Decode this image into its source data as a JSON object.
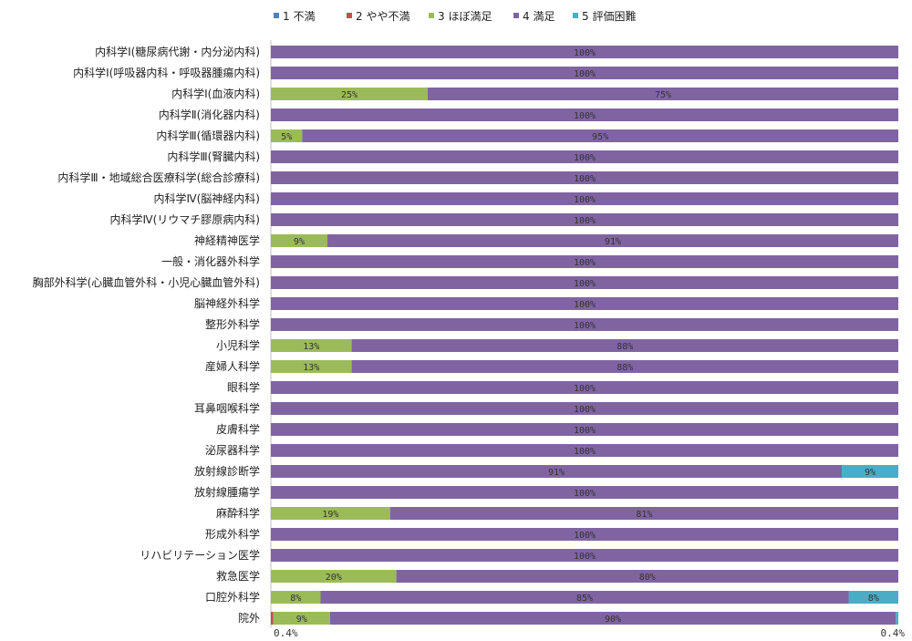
{
  "chart_data": {
    "type": "bar",
    "orientation": "horizontal",
    "stacked": true,
    "percent": true,
    "xlim": [
      0,
      100
    ],
    "legend_position": "top",
    "grid": false,
    "series": [
      {
        "name": "1 不満",
        "color": "#4F81BD"
      },
      {
        "name": "2 やや不満",
        "color": "#C0504D"
      },
      {
        "name": "3 ほぼ満足",
        "color": "#9BBB59"
      },
      {
        "name": "4 満足",
        "color": "#8064A2"
      },
      {
        "name": "5 評価困難",
        "color": "#4BACC6"
      }
    ],
    "categories": [
      "内科学Ⅰ(糖尿病代謝・内分泌内科)",
      "内科学Ⅰ(呼吸器内科・呼吸器腫瘍内科)",
      "内科学Ⅰ(血液内科)",
      "内科学Ⅱ(消化器内科)",
      "内科学Ⅲ(循環器内科)",
      "内科学Ⅲ(腎臓内科)",
      "内科学Ⅲ・地域総合医療科学(総合診療科)",
      "内科学Ⅳ(脳神経内科)",
      "内科学Ⅳ(リウマチ膠原病内科)",
      "神経精神医学",
      "一般・消化器外科学",
      "胸部外科学(心臓血管外科・小児心臓血管外科)",
      "脳神経外科学",
      "整形外科学",
      "小児科学",
      "産婦人科学",
      "眼科学",
      "耳鼻咽喉科学",
      "皮膚科学",
      "泌尿器科学",
      "放射線診断学",
      "放射線腫瘍学",
      "麻酔科学",
      "形成外科学",
      "リハビリテーション医学",
      "救急医学",
      "口腔外科学",
      "院外"
    ],
    "values": [
      [
        0,
        0,
        0,
        100,
        0
      ],
      [
        0,
        0,
        0,
        100,
        0
      ],
      [
        0,
        0,
        25,
        75,
        0
      ],
      [
        0,
        0,
        0,
        100,
        0
      ],
      [
        0,
        0,
        5,
        95,
        0
      ],
      [
        0,
        0,
        0,
        100,
        0
      ],
      [
        0,
        0,
        0,
        100,
        0
      ],
      [
        0,
        0,
        0,
        100,
        0
      ],
      [
        0,
        0,
        0,
        100,
        0
      ],
      [
        0,
        0,
        9,
        91,
        0
      ],
      [
        0,
        0,
        0,
        100,
        0
      ],
      [
        0,
        0,
        0,
        100,
        0
      ],
      [
        0,
        0,
        0,
        100,
        0
      ],
      [
        0,
        0,
        0,
        100,
        0
      ],
      [
        0,
        0,
        13,
        88,
        0
      ],
      [
        0,
        0,
        13,
        88,
        0
      ],
      [
        0,
        0,
        0,
        100,
        0
      ],
      [
        0,
        0,
        0,
        100,
        0
      ],
      [
        0,
        0,
        0,
        100,
        0
      ],
      [
        0,
        0,
        0,
        100,
        0
      ],
      [
        0,
        0,
        0,
        91,
        9
      ],
      [
        0,
        0,
        0,
        100,
        0
      ],
      [
        0,
        0,
        19,
        81,
        0
      ],
      [
        0,
        0,
        0,
        100,
        0
      ],
      [
        0,
        0,
        0,
        100,
        0
      ],
      [
        0,
        0,
        20,
        80,
        0
      ],
      [
        0,
        0,
        8,
        85,
        8
      ],
      [
        0,
        0.4,
        9,
        90,
        0.4
      ]
    ],
    "label_suffix": "%",
    "outside_labels": [
      {
        "category_index": 27,
        "series_index": 1,
        "text": "0.4%"
      },
      {
        "category_index": 27,
        "series_index": 4,
        "text": "0.4%"
      }
    ],
    "title": "",
    "xlabel": "",
    "ylabel": ""
  }
}
